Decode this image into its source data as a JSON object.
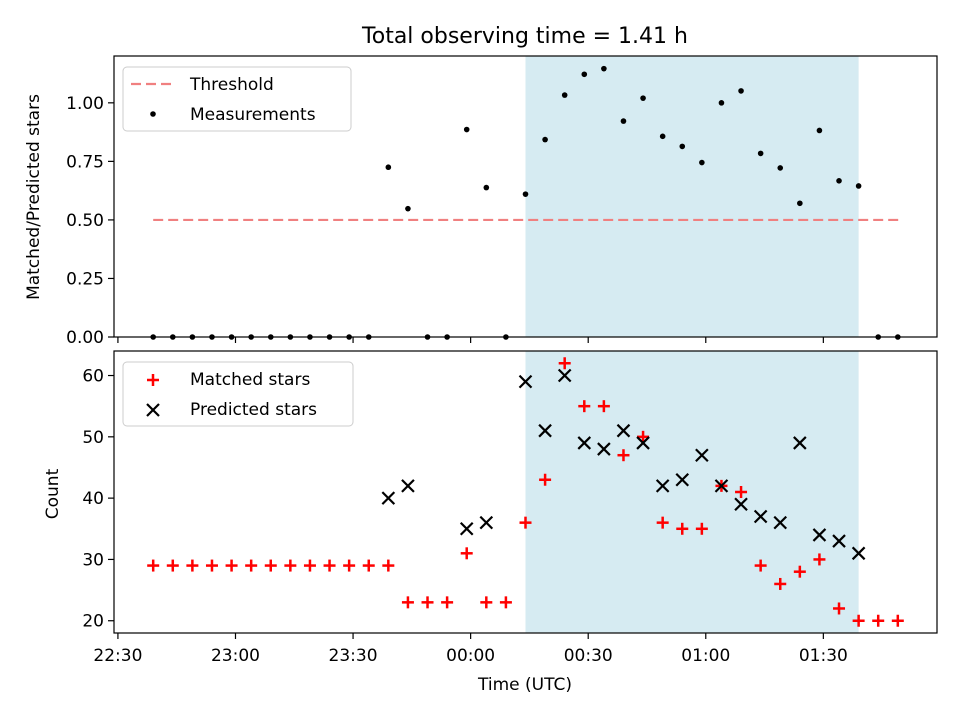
{
  "chart_data": {
    "title": "Total observing time = 1.41 h",
    "xlabel": "Time (UTC)",
    "x_ticks": [
      "22:30",
      "23:00",
      "23:30",
      "00:00",
      "00:30",
      "01:00",
      "01:30"
    ],
    "x_tick_minutes": [
      -90,
      -60,
      -30,
      0,
      30,
      60,
      90
    ],
    "xlim_minutes": [
      -91,
      119
    ],
    "highlight_span_minutes": [
      14,
      99
    ],
    "highlight_color": "#add8e6",
    "panels": [
      {
        "type": "scatter",
        "ylabel": "Matched/Predicted stars",
        "ylim": [
          0,
          1.2
        ],
        "y_ticks": [
          "0.00",
          "0.25",
          "0.50",
          "0.75",
          "1.00"
        ],
        "y_tick_values": [
          0,
          0.25,
          0.5,
          0.75,
          1.0
        ],
        "legend_position": "upper-left",
        "threshold": {
          "name": "Threshold",
          "value": 0.5,
          "x_range_minutes": [
            -81,
            110
          ],
          "color": "#f08080"
        },
        "series": [
          {
            "name": "Measurements",
            "color": "#000000",
            "x_minutes": [
              -81,
              -76,
              -71,
              -66,
              -61,
              -56,
              -51,
              -46,
              -41,
              -36,
              -31,
              -26,
              -21,
              -16,
              -11,
              -6,
              -1,
              4,
              9,
              14,
              19,
              24,
              29,
              34,
              39,
              44,
              49,
              54,
              59,
              64,
              69,
              74,
              79,
              84,
              89,
              94,
              99,
              104,
              109
            ],
            "y": [
              0,
              0,
              0,
              0,
              0,
              0,
              0,
              0,
              0,
              0,
              0,
              0,
              0.725,
              0.548,
              0,
              0,
              0.886,
              0.638,
              0,
              0.61,
              0.843,
              1.033,
              1.122,
              1.146,
              0.922,
              1.02,
              0.857,
              0.814,
              0.745,
              1.0,
              1.051,
              0.784,
              0.722,
              0.571,
              0.882,
              0.667,
              0.645,
              0,
              0
            ]
          }
        ]
      },
      {
        "type": "scatter",
        "ylabel": "Count",
        "ylim": [
          18,
          64
        ],
        "y_ticks": [
          "20",
          "30",
          "40",
          "50",
          "60"
        ],
        "y_tick_values": [
          20,
          30,
          40,
          50,
          60
        ],
        "legend_position": "upper-left",
        "series": [
          {
            "name": "Matched stars",
            "marker": "plus",
            "color": "#ff0000",
            "x_minutes": [
              -81,
              -76,
              -71,
              -66,
              -61,
              -56,
              -51,
              -46,
              -41,
              -36,
              -31,
              -26,
              -21,
              -16,
              -11,
              -6,
              -1,
              4,
              9,
              14,
              19,
              24,
              29,
              34,
              39,
              44,
              49,
              54,
              59,
              64,
              69,
              74,
              79,
              84,
              89,
              94,
              99,
              104,
              109
            ],
            "y": [
              29,
              29,
              29,
              29,
              29,
              29,
              29,
              29,
              29,
              29,
              29,
              29,
              29,
              23,
              23,
              23,
              31,
              23,
              23,
              36,
              43,
              62,
              55,
              55,
              47,
              50,
              36,
              35,
              35,
              42,
              41,
              29,
              26,
              28,
              30,
              22,
              20,
              20,
              20
            ]
          },
          {
            "name": "Predicted stars",
            "marker": "x",
            "color": "#000000",
            "x_minutes": [
              -21,
              -16,
              -1,
              4,
              14,
              19,
              24,
              29,
              34,
              39,
              44,
              49,
              54,
              59,
              64,
              69,
              74,
              79,
              84,
              89,
              94,
              99
            ],
            "y": [
              40,
              42,
              35,
              36,
              59,
              51,
              60,
              49,
              48,
              51,
              49,
              42,
              43,
              47,
              42,
              39,
              37,
              36,
              49,
              34,
              33,
              31
            ]
          }
        ]
      }
    ]
  }
}
